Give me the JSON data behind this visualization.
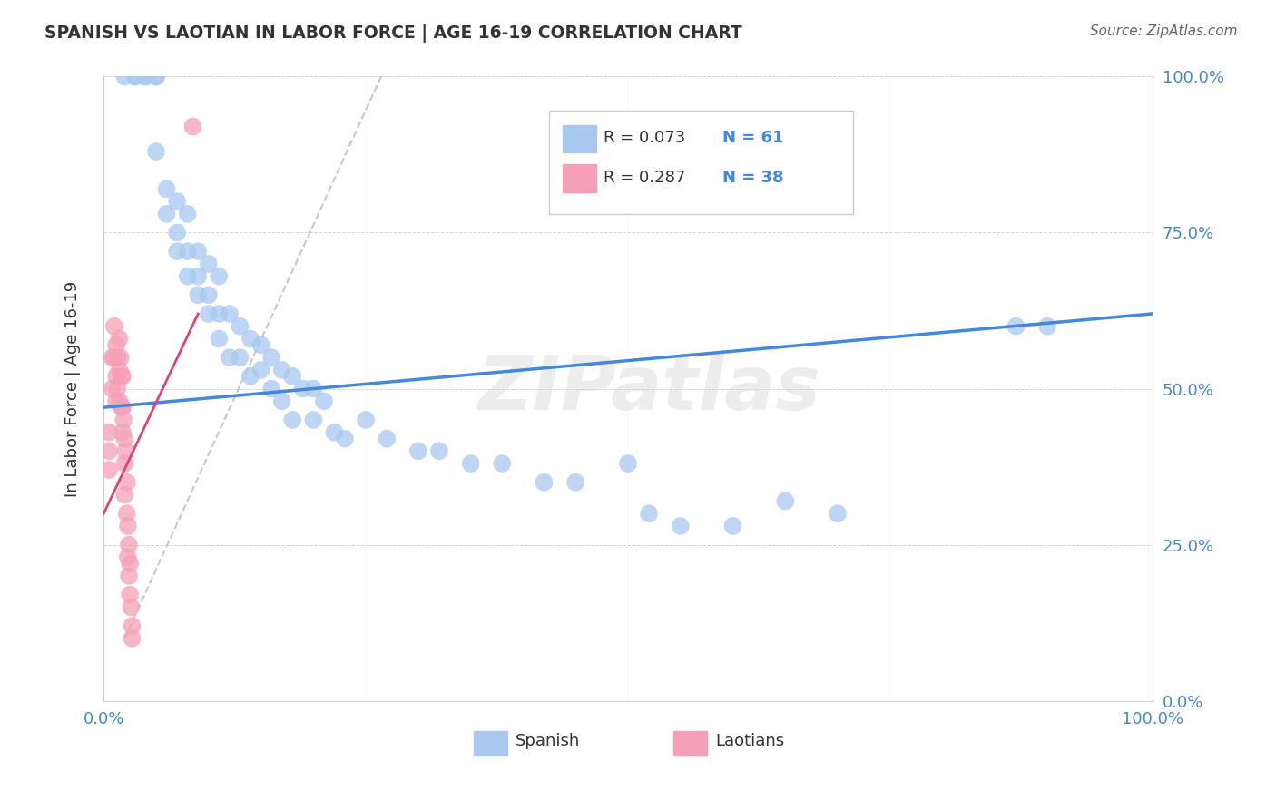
{
  "title": "SPANISH VS LAOTIAN IN LABOR FORCE | AGE 16-19 CORRELATION CHART",
  "source": "Source: ZipAtlas.com",
  "ylabel": "In Labor Force | Age 16-19",
  "xlim": [
    0,
    1.0
  ],
  "ylim": [
    0,
    1.0
  ],
  "ytick_labels": [
    "0.0%",
    "25.0%",
    "50.0%",
    "75.0%",
    "100.0%"
  ],
  "ytick_positions": [
    0.0,
    0.25,
    0.5,
    0.75,
    1.0
  ],
  "watermark": "ZIPatlas",
  "legend_blue_r": "R = 0.073",
  "legend_blue_n": "N = 61",
  "legend_pink_r": "R = 0.287",
  "legend_pink_n": "N = 38",
  "blue_color": "#A8C8F0",
  "pink_color": "#F4A0B8",
  "blue_line_color": "#4488DD",
  "pink_line_color": "#DD4477",
  "title_color": "#333333",
  "axis_label_color": "#333333",
  "tick_label_color": "#4488CC",
  "grid_color": "#BBBBBB",
  "blue_scatter_x": [
    0.02,
    0.03,
    0.03,
    0.04,
    0.04,
    0.05,
    0.05,
    0.05,
    0.06,
    0.06,
    0.07,
    0.07,
    0.07,
    0.08,
    0.08,
    0.08,
    0.09,
    0.09,
    0.09,
    0.1,
    0.1,
    0.1,
    0.11,
    0.11,
    0.11,
    0.12,
    0.12,
    0.13,
    0.13,
    0.14,
    0.14,
    0.15,
    0.15,
    0.16,
    0.16,
    0.17,
    0.17,
    0.18,
    0.18,
    0.19,
    0.2,
    0.2,
    0.21,
    0.22,
    0.23,
    0.25,
    0.27,
    0.3,
    0.32,
    0.35,
    0.38,
    0.42,
    0.45,
    0.5,
    0.52,
    0.55,
    0.6,
    0.65,
    0.7,
    0.87,
    0.9
  ],
  "blue_scatter_y": [
    1.0,
    1.0,
    1.0,
    1.0,
    1.0,
    1.0,
    1.0,
    0.88,
    0.82,
    0.78,
    0.8,
    0.75,
    0.72,
    0.78,
    0.72,
    0.68,
    0.72,
    0.68,
    0.65,
    0.7,
    0.65,
    0.62,
    0.68,
    0.62,
    0.58,
    0.62,
    0.55,
    0.6,
    0.55,
    0.58,
    0.52,
    0.57,
    0.53,
    0.55,
    0.5,
    0.53,
    0.48,
    0.52,
    0.45,
    0.5,
    0.5,
    0.45,
    0.48,
    0.43,
    0.42,
    0.45,
    0.42,
    0.4,
    0.4,
    0.38,
    0.38,
    0.35,
    0.35,
    0.38,
    0.3,
    0.28,
    0.28,
    0.32,
    0.3,
    0.6,
    0.6
  ],
  "pink_scatter_x": [
    0.005,
    0.005,
    0.005,
    0.008,
    0.008,
    0.01,
    0.01,
    0.012,
    0.012,
    0.012,
    0.013,
    0.013,
    0.015,
    0.015,
    0.015,
    0.016,
    0.017,
    0.017,
    0.018,
    0.018,
    0.018,
    0.019,
    0.02,
    0.02,
    0.02,
    0.021,
    0.022,
    0.022,
    0.023,
    0.023,
    0.024,
    0.024,
    0.025,
    0.025,
    0.026,
    0.027,
    0.027,
    0.085
  ],
  "pink_scatter_y": [
    0.43,
    0.4,
    0.37,
    0.55,
    0.5,
    0.6,
    0.55,
    0.57,
    0.52,
    0.48,
    0.55,
    0.5,
    0.58,
    0.53,
    0.48,
    0.55,
    0.52,
    0.47,
    0.52,
    0.47,
    0.43,
    0.45,
    0.42,
    0.38,
    0.33,
    0.4,
    0.35,
    0.3,
    0.28,
    0.23,
    0.25,
    0.2,
    0.22,
    0.17,
    0.15,
    0.12,
    0.1,
    0.92
  ],
  "blue_line_x": [
    0.0,
    1.0
  ],
  "blue_line_y": [
    0.47,
    0.62
  ],
  "pink_line_x": [
    0.0,
    0.09
  ],
  "pink_line_y": [
    0.3,
    0.62
  ],
  "dash_line_x": [
    0.02,
    0.27
  ],
  "dash_line_y": [
    0.1,
    1.02
  ]
}
